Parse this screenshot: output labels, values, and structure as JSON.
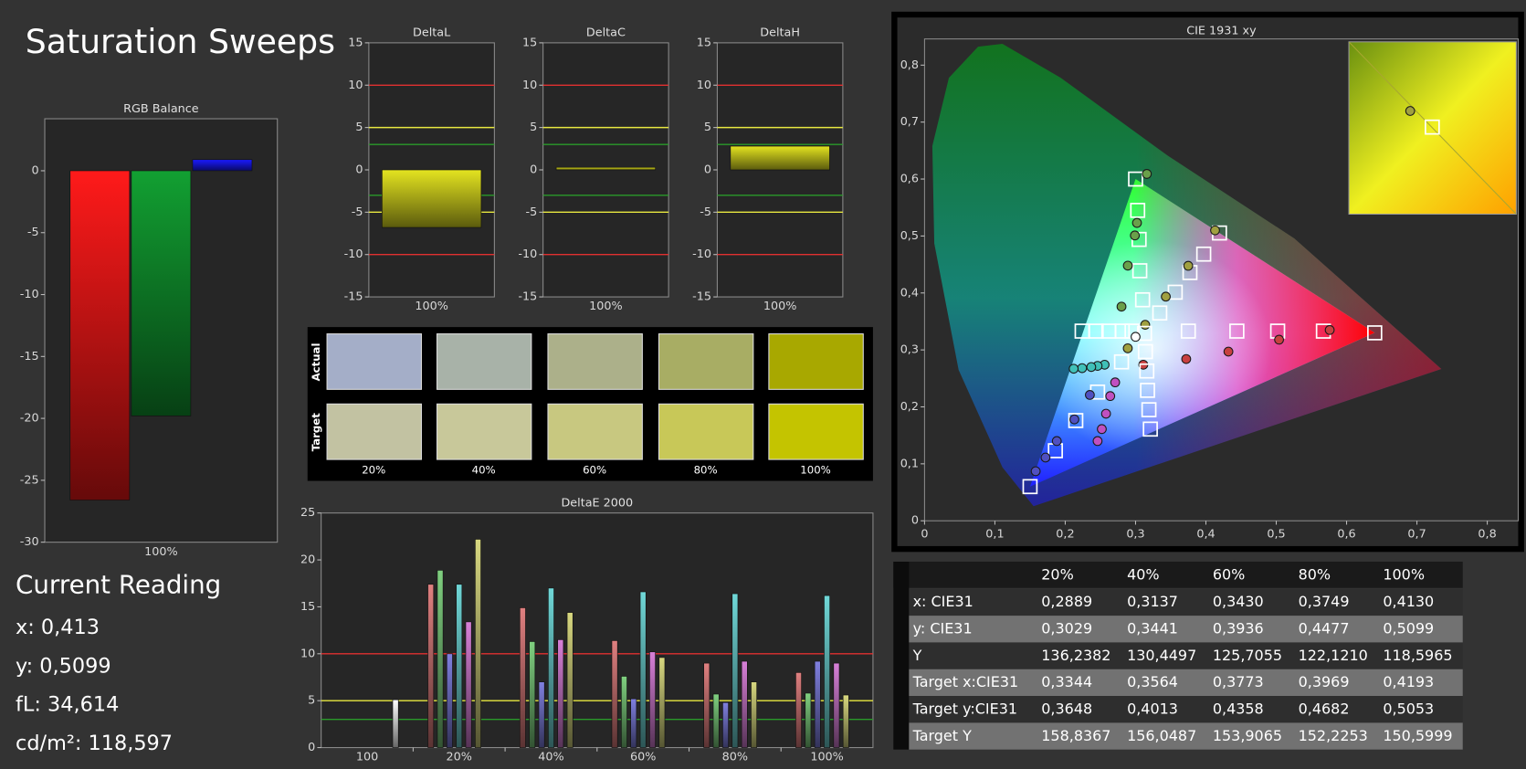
{
  "title": "Saturation Sweeps",
  "chart_data": [
    {
      "type": "bar",
      "title": "RGB Balance",
      "categories": [
        "100%"
      ],
      "series": [
        {
          "color": "#ff1a1a",
          "values": [
            -26.6
          ]
        },
        {
          "color": "#12a032",
          "values": [
            -19.8
          ]
        },
        {
          "color": "#1a1aff",
          "values": [
            0.9
          ]
        }
      ],
      "ylim": [
        -30,
        4.2
      ],
      "yticks": [
        -30,
        -25,
        -20,
        -15,
        -10,
        -5,
        0
      ]
    },
    {
      "type": "bar",
      "title": "DeltaL",
      "categories": [
        "100%"
      ],
      "series": [
        {
          "color": "#e4e420",
          "values": [
            -6.8
          ]
        }
      ],
      "ylim": [
        -15,
        15
      ],
      "yticks": [
        -15,
        -10,
        -5,
        0,
        5,
        10,
        15
      ],
      "reference_lines": [
        {
          "value": 10,
          "color": "#e03030"
        },
        {
          "value": -10,
          "color": "#e03030"
        },
        {
          "value": 5,
          "color": "#e8e840"
        },
        {
          "value": -5,
          "color": "#e8e840"
        },
        {
          "value": 3,
          "color": "#2a9a2a"
        },
        {
          "value": -3,
          "color": "#2a9a2a"
        }
      ]
    },
    {
      "type": "bar",
      "title": "DeltaC",
      "categories": [
        "100%"
      ],
      "series": [
        {
          "color": "#e4e420",
          "values": [
            0.3
          ]
        }
      ],
      "ylim": [
        -15,
        15
      ],
      "yticks": [
        -15,
        -10,
        -5,
        0,
        5,
        10,
        15
      ],
      "reference_lines": [
        {
          "value": 10,
          "color": "#e03030"
        },
        {
          "value": -10,
          "color": "#e03030"
        },
        {
          "value": 5,
          "color": "#e8e840"
        },
        {
          "value": -5,
          "color": "#e8e840"
        },
        {
          "value": 3,
          "color": "#2a9a2a"
        },
        {
          "value": -3,
          "color": "#2a9a2a"
        }
      ]
    },
    {
      "type": "bar",
      "title": "DeltaH",
      "categories": [
        "100%"
      ],
      "series": [
        {
          "color": "#e4e420",
          "values": [
            2.8
          ]
        }
      ],
      "ylim": [
        -15,
        15
      ],
      "yticks": [
        -15,
        -10,
        -5,
        0,
        5,
        10,
        15
      ],
      "reference_lines": [
        {
          "value": 10,
          "color": "#e03030"
        },
        {
          "value": -10,
          "color": "#e03030"
        },
        {
          "value": 5,
          "color": "#e8e840"
        },
        {
          "value": -5,
          "color": "#e8e840"
        },
        {
          "value": 3,
          "color": "#2a9a2a"
        },
        {
          "value": -3,
          "color": "#2a9a2a"
        }
      ]
    },
    {
      "type": "bar",
      "title": "DeltaE 2000",
      "categories": [
        "100",
        "20%",
        "40%",
        "60%",
        "80%",
        "100%"
      ],
      "series": [
        {
          "color": "#e08080",
          "values": [
            null,
            17.4,
            14.9,
            11.4,
            9.0,
            8.0
          ]
        },
        {
          "color": "#80d080",
          "values": [
            null,
            18.9,
            11.3,
            7.6,
            5.7,
            5.8
          ]
        },
        {
          "color": "#8080e0",
          "values": [
            null,
            10.0,
            7.0,
            5.2,
            4.8,
            9.2
          ]
        },
        {
          "color": "#70d8d8",
          "values": [
            null,
            17.4,
            17.0,
            16.6,
            16.4,
            16.2
          ]
        },
        {
          "color": "#d880d8",
          "values": [
            null,
            13.4,
            11.5,
            10.2,
            9.2,
            9.0
          ]
        },
        {
          "color": "#d8d880",
          "values": [
            null,
            22.2,
            14.4,
            9.6,
            7.0,
            5.6
          ]
        },
        {
          "color": "#ffffff",
          "values": [
            5.1,
            null,
            null,
            null,
            null,
            null
          ]
        }
      ],
      "ylim": [
        0,
        25
      ],
      "yticks": [
        0,
        5,
        10,
        15,
        20,
        25
      ],
      "reference_lines": [
        {
          "value": 10,
          "color": "#e03030"
        },
        {
          "value": 5,
          "color": "#e8e840"
        },
        {
          "value": 3,
          "color": "#2a9a2a"
        }
      ]
    },
    {
      "type": "scatter",
      "title": "CIE 1931 xy",
      "xlim": [
        0,
        0.844
      ],
      "ylim": [
        0,
        0.846
      ],
      "xticks": [
        0,
        {
          "value": 0.1,
          "label": "0,1"
        },
        {
          "value": 0.2,
          "label": "0,2"
        },
        {
          "value": 0.3,
          "label": "0,3"
        },
        {
          "value": 0.4,
          "label": "0,4"
        },
        {
          "value": 0.5,
          "label": "0,5"
        },
        {
          "value": 0.6,
          "label": "0,6"
        },
        {
          "value": 0.7,
          "label": "0,7"
        },
        {
          "value": 0.8,
          "label": "0,8"
        }
      ],
      "yticks": [
        0,
        {
          "value": 0.1,
          "label": "0,1"
        },
        {
          "value": 0.2,
          "label": "0,2"
        },
        {
          "value": 0.3,
          "label": "0,3"
        },
        {
          "value": 0.4,
          "label": "0,4"
        },
        {
          "value": 0.5,
          "label": "0,5"
        },
        {
          "value": 0.6,
          "label": "0,6"
        },
        {
          "value": 0.7,
          "label": "0,7"
        },
        {
          "value": 0.8,
          "label": "0,8"
        }
      ],
      "series": [
        {
          "marker": "square",
          "color": "#ffffff",
          "x": [
            0.375,
            0.444,
            0.502,
            0.567,
            0.64
          ],
          "y": [
            0.333,
            0.333,
            0.333,
            0.333,
            0.33
          ]
        },
        {
          "marker": "circle",
          "color": "#c84040",
          "x": [
            0.311,
            0.372,
            0.432,
            0.504,
            0.576
          ],
          "y": [
            0.274,
            0.284,
            0.297,
            0.318,
            0.335
          ]
        },
        {
          "marker": "square",
          "color": "#ffffff",
          "x": [
            0.31,
            0.306,
            0.305,
            0.303,
            0.3
          ],
          "y": [
            0.388,
            0.439,
            0.494,
            0.545,
            0.6
          ]
        },
        {
          "marker": "circle",
          "color": "#6aa04a",
          "x": [
            0.28,
            0.289,
            0.299,
            0.302,
            0.316
          ],
          "y": [
            0.376,
            0.448,
            0.501,
            0.523,
            0.609
          ]
        },
        {
          "marker": "square",
          "color": "#ffffff",
          "x": [
            0.28,
            0.246,
            0.215,
            0.186,
            0.15
          ],
          "y": [
            0.279,
            0.226,
            0.176,
            0.123,
            0.06
          ]
        },
        {
          "marker": "circle",
          "color": "#5050c0",
          "x": [
            0.235,
            0.213,
            0.188,
            0.172,
            0.158
          ],
          "y": [
            0.221,
            0.178,
            0.14,
            0.111,
            0.087
          ]
        },
        {
          "marker": "square",
          "color": "#ffffff",
          "x": [
            0.295,
            0.281,
            0.262,
            0.244,
            0.224
          ],
          "y": [
            0.333,
            0.333,
            0.333,
            0.333,
            0.333
          ]
        },
        {
          "marker": "circle",
          "color": "#40c0b8",
          "x": [
            0.256,
            0.246,
            0.237,
            0.224,
            0.212
          ],
          "y": [
            0.274,
            0.272,
            0.27,
            0.268,
            0.267
          ]
        },
        {
          "marker": "square",
          "color": "#ffffff",
          "x": [
            0.314,
            0.316,
            0.317,
            0.319,
            0.321
          ],
          "y": [
            0.297,
            0.263,
            0.229,
            0.195,
            0.161
          ]
        },
        {
          "marker": "circle",
          "color": "#c050c0",
          "x": [
            0.271,
            0.264,
            0.258,
            0.252,
            0.246
          ],
          "y": [
            0.243,
            0.219,
            0.188,
            0.161,
            0.14
          ]
        },
        {
          "marker": "square",
          "color": "#ffffff",
          "x": [
            0.3344,
            0.3564,
            0.3773,
            0.3969,
            0.4193
          ],
          "y": [
            0.3648,
            0.4013,
            0.4358,
            0.4682,
            0.5053
          ]
        },
        {
          "marker": "circle",
          "color": "#a0a040",
          "x": [
            0.2889,
            0.3137,
            0.343,
            0.3749,
            0.413
          ],
          "y": [
            0.3029,
            0.3441,
            0.3936,
            0.4477,
            0.5099
          ]
        },
        {
          "marker": "square",
          "color": "#ffffff",
          "x": [
            0.3127
          ],
          "y": [
            0.329
          ]
        },
        {
          "marker": "circle",
          "color": "#ffffff",
          "x": [
            0.3
          ],
          "y": [
            0.323
          ]
        }
      ]
    }
  ],
  "swatches": {
    "rows": [
      {
        "label": "Actual",
        "colors": [
          "#a4aec8",
          "#a8b2a8",
          "#acb08a",
          "#a8ad64",
          "#a8a800"
        ]
      },
      {
        "label": "Target",
        "colors": [
          "#c2c2a2",
          "#c8c89a",
          "#c8c880",
          "#c8c858",
          "#c4c400"
        ]
      }
    ],
    "labels": [
      "20%",
      "40%",
      "60%",
      "80%",
      "100%"
    ]
  },
  "current_reading": {
    "title": "Current Reading",
    "lines": [
      "x: 0,413",
      "y: 0,5099",
      "fL: 34,614",
      "cd/m²: 118,597"
    ]
  },
  "table": {
    "columns": [
      "20%",
      "40%",
      "60%",
      "80%",
      "100%"
    ],
    "rows": [
      {
        "label": "x: CIE31",
        "cells": [
          "0,2889",
          "0,3137",
          "0,3430",
          "0,3749",
          "0,4130"
        ]
      },
      {
        "label": "y: CIE31",
        "cells": [
          "0,3029",
          "0,3441",
          "0,3936",
          "0,4477",
          "0,5099"
        ]
      },
      {
        "label": "Y",
        "cells": [
          "136,2382",
          "130,4497",
          "125,7055",
          "122,1210",
          "118,5965"
        ]
      },
      {
        "label": "Target x:CIE31",
        "cells": [
          "0,3344",
          "0,3564",
          "0,3773",
          "0,3969",
          "0,4193"
        ]
      },
      {
        "label": "Target y:CIE31",
        "cells": [
          "0,3648",
          "0,4013",
          "0,4358",
          "0,4682",
          "0,5053"
        ]
      },
      {
        "label": "Target Y",
        "cells": [
          "158,8367",
          "156,0487",
          "153,9065",
          "152,2253",
          "150,5999"
        ]
      }
    ]
  }
}
